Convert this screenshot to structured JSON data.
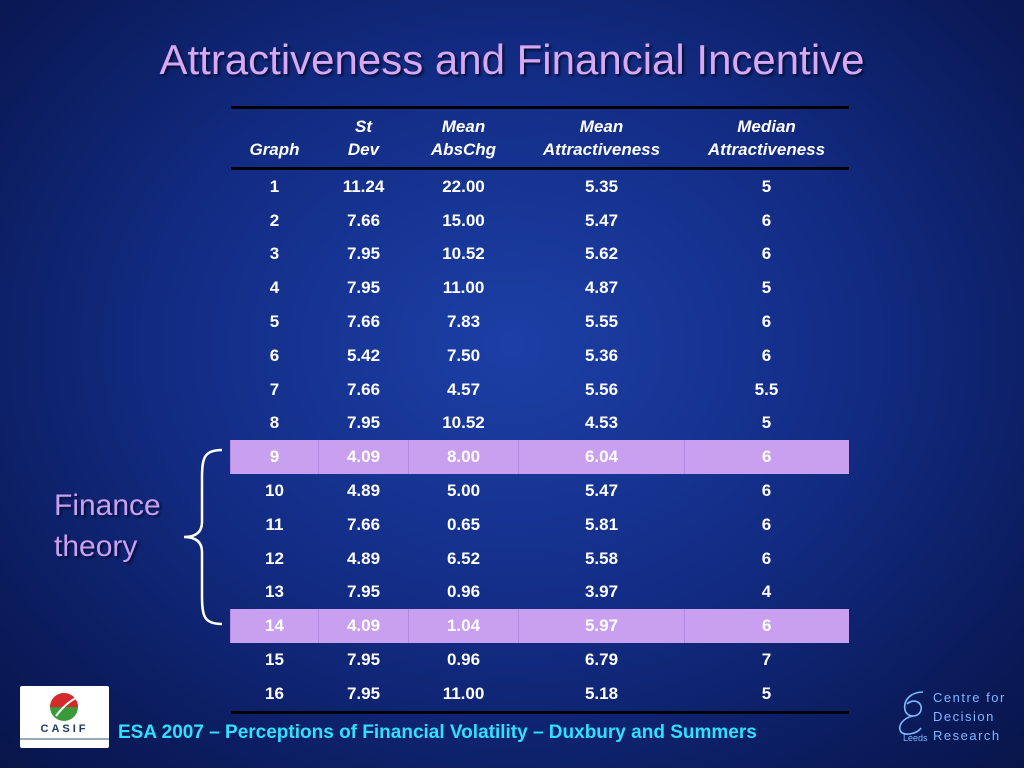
{
  "title": "Attractiveness and Financial Incentive",
  "table": {
    "headers": [
      {
        "line1": "",
        "line2": "Graph"
      },
      {
        "line1": "St",
        "line2": "Dev"
      },
      {
        "line1": "Mean",
        "line2": "AbsChg"
      },
      {
        "line1": "Mean",
        "line2": "Attractiveness"
      },
      {
        "line1": "Median",
        "line2": "Attractiveness"
      }
    ],
    "rows": [
      {
        "graph": "1",
        "st_dev": "11.24",
        "mean_abschg": "22.00",
        "mean_attr": "5.35",
        "median_attr": "5",
        "highlight": false
      },
      {
        "graph": "2",
        "st_dev": "7.66",
        "mean_abschg": "15.00",
        "mean_attr": "5.47",
        "median_attr": "6",
        "highlight": false
      },
      {
        "graph": "3",
        "st_dev": "7.95",
        "mean_abschg": "10.52",
        "mean_attr": "5.62",
        "median_attr": "6",
        "highlight": false
      },
      {
        "graph": "4",
        "st_dev": "7.95",
        "mean_abschg": "11.00",
        "mean_attr": "4.87",
        "median_attr": "5",
        "highlight": false
      },
      {
        "graph": "5",
        "st_dev": "7.66",
        "mean_abschg": "7.83",
        "mean_attr": "5.55",
        "median_attr": "6",
        "highlight": false
      },
      {
        "graph": "6",
        "st_dev": "5.42",
        "mean_abschg": "7.50",
        "mean_attr": "5.36",
        "median_attr": "6",
        "highlight": false
      },
      {
        "graph": "7",
        "st_dev": "7.66",
        "mean_abschg": "4.57",
        "mean_attr": "5.56",
        "median_attr": "5.5",
        "highlight": false
      },
      {
        "graph": "8",
        "st_dev": "7.95",
        "mean_abschg": "10.52",
        "mean_attr": "4.53",
        "median_attr": "5",
        "highlight": false
      },
      {
        "graph": "9",
        "st_dev": "4.09",
        "mean_abschg": "8.00",
        "mean_attr": "6.04",
        "median_attr": "6",
        "highlight": true
      },
      {
        "graph": "10",
        "st_dev": "4.89",
        "mean_abschg": "5.00",
        "mean_attr": "5.47",
        "median_attr": "6",
        "highlight": false
      },
      {
        "graph": "11",
        "st_dev": "7.66",
        "mean_abschg": "0.65",
        "mean_attr": "5.81",
        "median_attr": "6",
        "highlight": false
      },
      {
        "graph": "12",
        "st_dev": "4.89",
        "mean_abschg": "6.52",
        "mean_attr": "5.58",
        "median_attr": "6",
        "highlight": false
      },
      {
        "graph": "13",
        "st_dev": "7.95",
        "mean_abschg": "0.96",
        "mean_attr": "3.97",
        "median_attr": "4",
        "highlight": false
      },
      {
        "graph": "14",
        "st_dev": "4.09",
        "mean_abschg": "1.04",
        "mean_attr": "5.97",
        "median_attr": "6",
        "highlight": true
      },
      {
        "graph": "15",
        "st_dev": "7.95",
        "mean_abschg": "0.96",
        "mean_attr": "6.79",
        "median_attr": "7",
        "highlight": false
      },
      {
        "graph": "16",
        "st_dev": "7.95",
        "mean_abschg": "11.00",
        "mean_attr": "5.18",
        "median_attr": "5",
        "highlight": false
      }
    ]
  },
  "annotation": {
    "line1": "Finance",
    "line2": "theory"
  },
  "footer": "ESA 2007 – Perceptions of Financial Volatility – Duxbury and Summers",
  "logos": {
    "casif": {
      "name": "CASIF",
      "icon": "casif-logo-icon"
    },
    "cdr": {
      "lines": [
        "Centre for",
        "Decision",
        "Research"
      ],
      "sub": "Leeds",
      "icon": "cdr-logo-icon"
    }
  },
  "colors": {
    "background": "#132d86",
    "title": "#d8a8f0",
    "highlight_row": "#c9a0f0",
    "footer": "#30e0ff"
  }
}
